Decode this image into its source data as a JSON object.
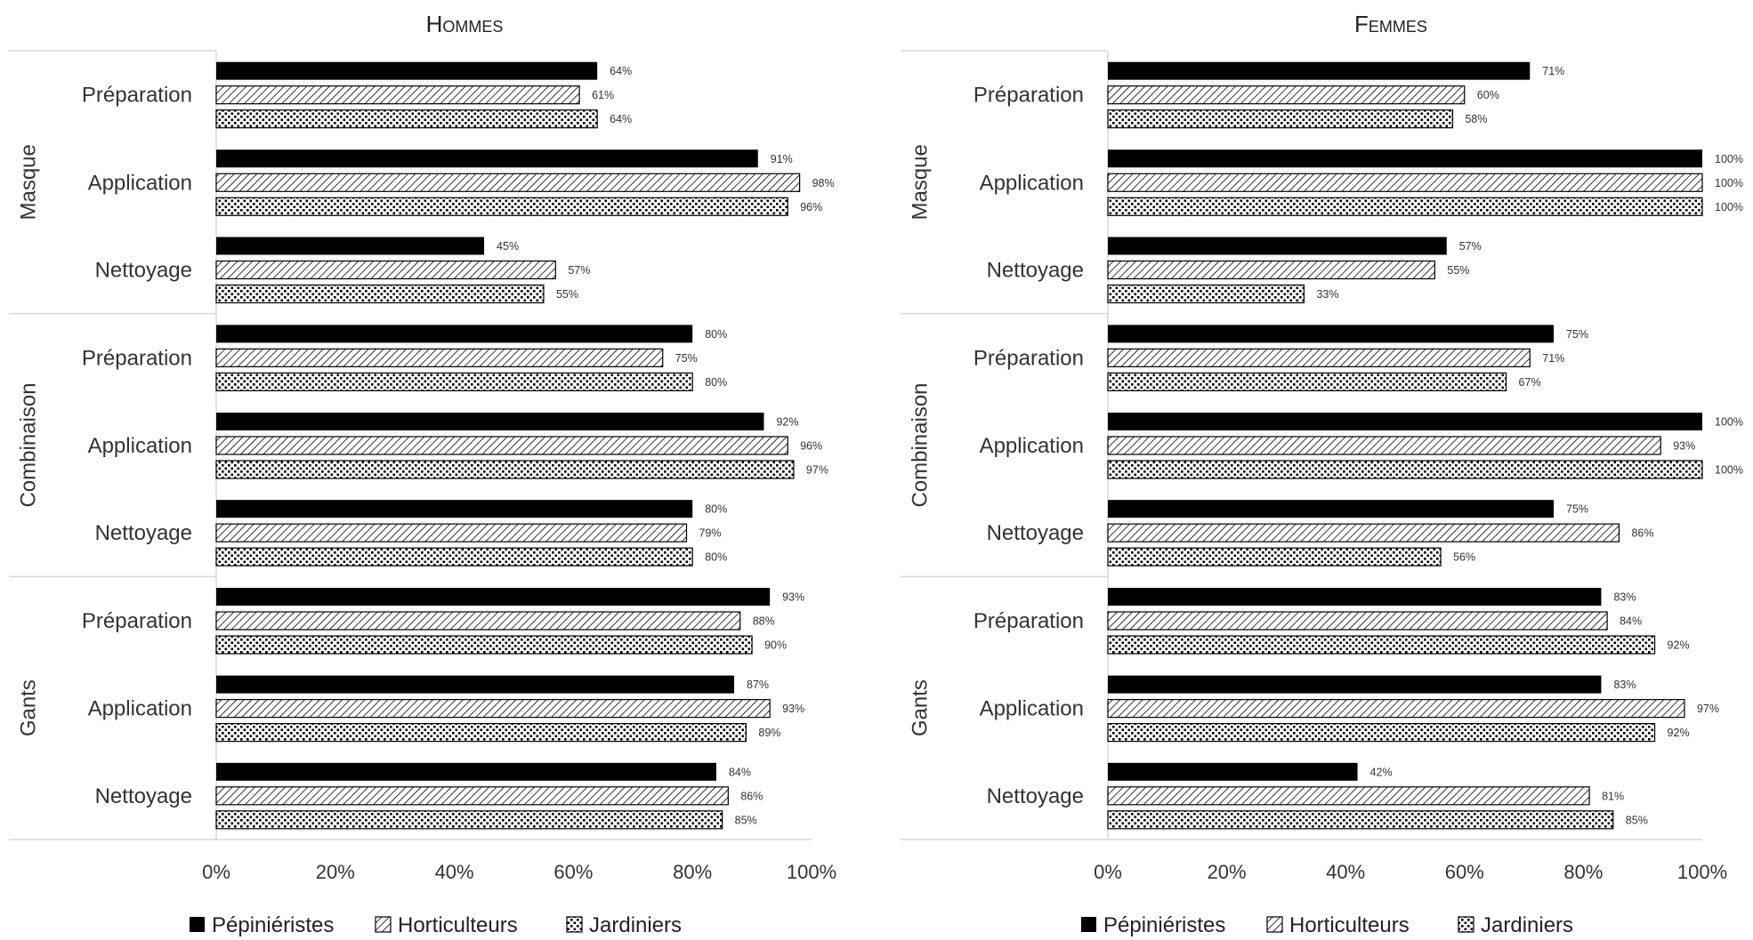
{
  "chart_data": [
    {
      "type": "bar",
      "orientation": "horizontal",
      "title": "Hommes",
      "groups": [
        "Masque",
        "Combinaison",
        "Gants"
      ],
      "categories": [
        "Préparation",
        "Application",
        "Nettoyage"
      ],
      "series": [
        {
          "name": "Pépiniéristes",
          "values": [
            [
              64,
              91,
              45
            ],
            [
              80,
              92,
              80
            ],
            [
              93,
              87,
              84
            ]
          ]
        },
        {
          "name": "Horticulteurs",
          "values": [
            [
              61,
              98,
              57
            ],
            [
              75,
              96,
              79
            ],
            [
              88,
              93,
              86
            ]
          ]
        },
        {
          "name": "Jardiniers",
          "values": [
            [
              64,
              96,
              55
            ],
            [
              80,
              97,
              80
            ],
            [
              90,
              89,
              85
            ]
          ]
        }
      ],
      "x_ticks": [
        "0%",
        "20%",
        "40%",
        "60%",
        "80%",
        "100%"
      ],
      "xlim": [
        0,
        100
      ],
      "grid": false,
      "legend_position": "bottom"
    },
    {
      "type": "bar",
      "orientation": "horizontal",
      "title": "Femmes",
      "groups": [
        "Masque",
        "Combinaison",
        "Gants"
      ],
      "categories": [
        "Préparation",
        "Application",
        "Nettoyage"
      ],
      "series": [
        {
          "name": "Pépiniéristes",
          "values": [
            [
              71,
              100,
              57
            ],
            [
              75,
              100,
              75
            ],
            [
              83,
              83,
              42
            ]
          ]
        },
        {
          "name": "Horticulteurs",
          "values": [
            [
              60,
              100,
              55
            ],
            [
              71,
              93,
              86
            ],
            [
              84,
              97,
              81
            ]
          ]
        },
        {
          "name": "Jardiniers",
          "values": [
            [
              58,
              100,
              33
            ],
            [
              67,
              100,
              56
            ],
            [
              92,
              92,
              85
            ]
          ]
        }
      ],
      "x_ticks": [
        "0%",
        "20%",
        "40%",
        "60%",
        "80%",
        "100%"
      ],
      "xlim": [
        0,
        100
      ],
      "grid": false,
      "legend_position": "bottom"
    }
  ],
  "legend": [
    {
      "name": "Pépiniéristes",
      "pattern": "solid"
    },
    {
      "name": "Horticulteurs",
      "pattern": "diagonal-hatch"
    },
    {
      "name": "Jardiniers",
      "pattern": "dots"
    }
  ],
  "value_suffix": "%",
  "colors": {
    "bar_solid": "#000000",
    "bar_outline": "#000000",
    "axis": "#d9d9d9",
    "text": "#333333"
  }
}
